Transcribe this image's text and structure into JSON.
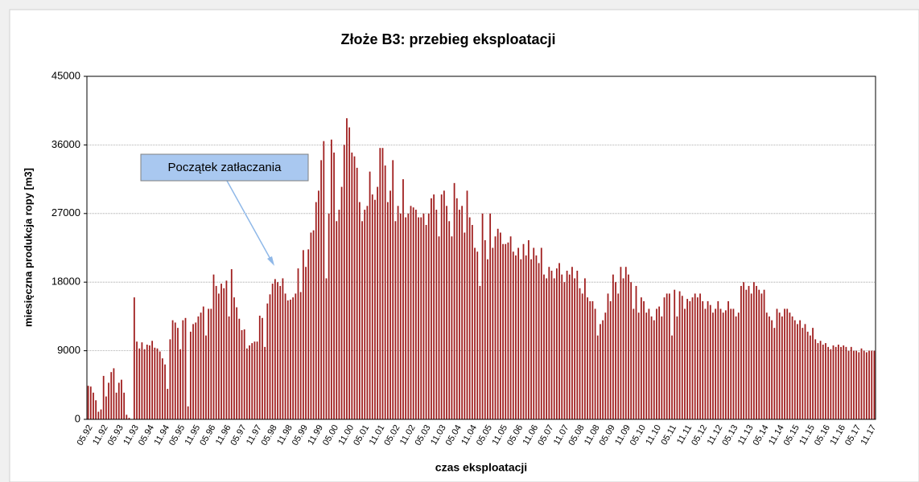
{
  "chart_data": {
    "type": "bar",
    "title": "Złoże B3: przebieg eksploatacji",
    "xlabel": "czas eksploatacji",
    "ylabel": "miesięczna produkcja ropy [m3]",
    "annotation": "Początek zatłaczania",
    "color": "#a01e1e",
    "grid": true,
    "ylim": [
      0,
      45000
    ],
    "yticks": [
      0,
      9000,
      18000,
      27000,
      36000,
      45000
    ],
    "categories": [
      "05.92",
      null,
      null,
      null,
      null,
      null,
      "11.92",
      null,
      null,
      null,
      null,
      null,
      "05.93",
      null,
      null,
      null,
      null,
      null,
      "11.93",
      null,
      null,
      null,
      null,
      null,
      "05.94",
      null,
      null,
      null,
      null,
      null,
      "11.94",
      null,
      null,
      null,
      null,
      null,
      "05.95",
      null,
      null,
      null,
      null,
      null,
      "11.95",
      null,
      null,
      null,
      null,
      null,
      "05.96",
      null,
      null,
      null,
      null,
      null,
      "11.96",
      null,
      null,
      null,
      null,
      null,
      "05.97",
      null,
      null,
      null,
      null,
      null,
      "11.97",
      null,
      null,
      null,
      null,
      null,
      "05.98",
      null,
      null,
      null,
      null,
      null,
      "11.98",
      null,
      null,
      null,
      null,
      null,
      "05.99",
      null,
      null,
      null,
      null,
      null,
      "11.99",
      null,
      null,
      null,
      null,
      null,
      "05.00",
      null,
      null,
      null,
      null,
      null,
      "11.00",
      null,
      null,
      null,
      null,
      null,
      "05.01",
      null,
      null,
      null,
      null,
      null,
      "11.01",
      null,
      null,
      null,
      null,
      null,
      "05.02",
      null,
      null,
      null,
      null,
      null,
      "11.02",
      null,
      null,
      null,
      null,
      null,
      "05.03",
      null,
      null,
      null,
      null,
      null,
      "11.03",
      null,
      null,
      null,
      null,
      null,
      "05.04",
      null,
      null,
      null,
      null,
      null,
      "11.04",
      null,
      null,
      null,
      null,
      null,
      "05.05",
      null,
      null,
      null,
      null,
      null,
      "11.05",
      null,
      null,
      null,
      null,
      null,
      "05.06",
      null,
      null,
      null,
      null,
      null,
      "11.06",
      null,
      null,
      null,
      null,
      null,
      "05.07",
      null,
      null,
      null,
      null,
      null,
      "11.07",
      null,
      null,
      null,
      null,
      null,
      "05.08",
      null,
      null,
      null,
      null,
      null,
      "11.08",
      null,
      null,
      null,
      null,
      null,
      "05.09",
      null,
      null,
      null,
      null,
      null,
      "11.09",
      null,
      null,
      null,
      null,
      null,
      "05.10",
      null,
      null,
      null,
      null,
      null,
      "11.10",
      null,
      null,
      null,
      null,
      null,
      "05.11",
      null,
      null,
      null,
      null,
      null,
      "11.11",
      null,
      null,
      null,
      null,
      null,
      "05.12",
      null,
      null,
      null,
      null,
      null,
      "11.12",
      null,
      null,
      null,
      null,
      null,
      "05.13",
      null,
      null,
      null,
      null,
      null,
      "11.13",
      null,
      null,
      null,
      null,
      null,
      "05.14",
      null,
      null,
      null,
      null,
      null,
      "11.14",
      null,
      null,
      null,
      null,
      null,
      "05.15",
      null,
      null,
      null,
      null,
      null,
      "11.15",
      null,
      null,
      null,
      null,
      null,
      "05.16",
      null,
      null,
      null,
      null,
      null,
      "11.16",
      null,
      null,
      null,
      null,
      null,
      "05.17",
      null,
      null,
      null,
      null,
      null,
      "11.17",
      null
    ],
    "values": [
      4400,
      4300,
      3500,
      2500,
      1000,
      1300,
      5700,
      3000,
      4800,
      6200,
      6700,
      3500,
      4800,
      5200,
      3500,
      600,
      200,
      0,
      16000,
      10200,
      9300,
      10100,
      9200,
      9800,
      9700,
      10300,
      9400,
      9300,
      8900,
      8000,
      7200,
      4000,
      10500,
      13000,
      12700,
      12000,
      9200,
      13000,
      13300,
      1700,
      11500,
      12500,
      12700,
      13500,
      14000,
      14800,
      11000,
      14500,
      14500,
      19000,
      17500,
      16500,
      17800,
      17200,
      18200,
      13500,
      19700,
      16000,
      14700,
      13200,
      11700,
      11800,
      9300,
      9700,
      10000,
      10200,
      10200,
      13600,
      13300,
      9500,
      15200,
      16400,
      17800,
      18400,
      18000,
      17500,
      18500,
      16500,
      15600,
      15700,
      16000,
      16500,
      19800,
      16700,
      22200,
      20000,
      22300,
      24500,
      24800,
      28500,
      30000,
      34000,
      36500,
      18500,
      27000,
      36700,
      35000,
      26000,
      27500,
      30500,
      36000,
      39500,
      38300,
      35000,
      34500,
      33000,
      28500,
      26000,
      27500,
      28000,
      32500,
      29500,
      28800,
      30500,
      35600,
      35600,
      33300,
      28500,
      30000,
      34000,
      26000,
      28000,
      27000,
      31500,
      26500,
      27000,
      28000,
      27800,
      27500,
      26500,
      26500,
      27000,
      25500,
      27000,
      29000,
      29500,
      27500,
      24000,
      29500,
      30000,
      28000,
      26000,
      24000,
      31000,
      29000,
      27500,
      28000,
      24500,
      30000,
      26500,
      25500,
      22500,
      22000,
      17500,
      27000,
      23500,
      21000,
      27000,
      22500,
      24000,
      25000,
      24500,
      23000,
      23000,
      23200,
      24000,
      22000,
      21500,
      22500,
      21000,
      23000,
      21500,
      23500,
      21000,
      22500,
      21500,
      20500,
      22500,
      19000,
      18500,
      20000,
      19500,
      18500,
      19800,
      20500,
      19000,
      18000,
      19500,
      19000,
      20000,
      18500,
      19500,
      17200,
      16500,
      18500,
      16000,
      15500,
      15500,
      14500,
      11000,
      12500,
      13000,
      14000,
      16500,
      15500,
      19000,
      18000,
      16500,
      20000,
      18500,
      20000,
      19000,
      18000,
      14500,
      17500,
      14000,
      16000,
      15500,
      14000,
      14500,
      13500,
      13000,
      14500,
      14800,
      13500,
      16000,
      16500,
      16500,
      11000,
      17000,
      13500,
      16800,
      16200,
      14500,
      15800,
      15500,
      16000,
      16500,
      16000,
      16500,
      15500,
      14500,
      15500,
      15000,
      14000,
      14500,
      15500,
      14500,
      14000,
      14300,
      15500,
      14500,
      14500,
      13500,
      14000,
      17500,
      18000,
      17000,
      17500,
      16500,
      18000,
      17500,
      17000,
      16500,
      17000,
      14000,
      13500,
      13000,
      12000,
      14500,
      14000,
      13500,
      14500,
      14500,
      14000,
      13500,
      13000,
      12500,
      13000,
      12000,
      12500,
      11500,
      11000,
      12000,
      10500,
      10000,
      10300,
      9800,
      10000,
      9500,
      9200,
      9700,
      9500,
      9800,
      9500,
      9700,
      9500,
      9000,
      9500,
      9000,
      9000,
      8800,
      9300,
      9000,
      8800,
      9000,
      9000,
      9000
    ]
  }
}
